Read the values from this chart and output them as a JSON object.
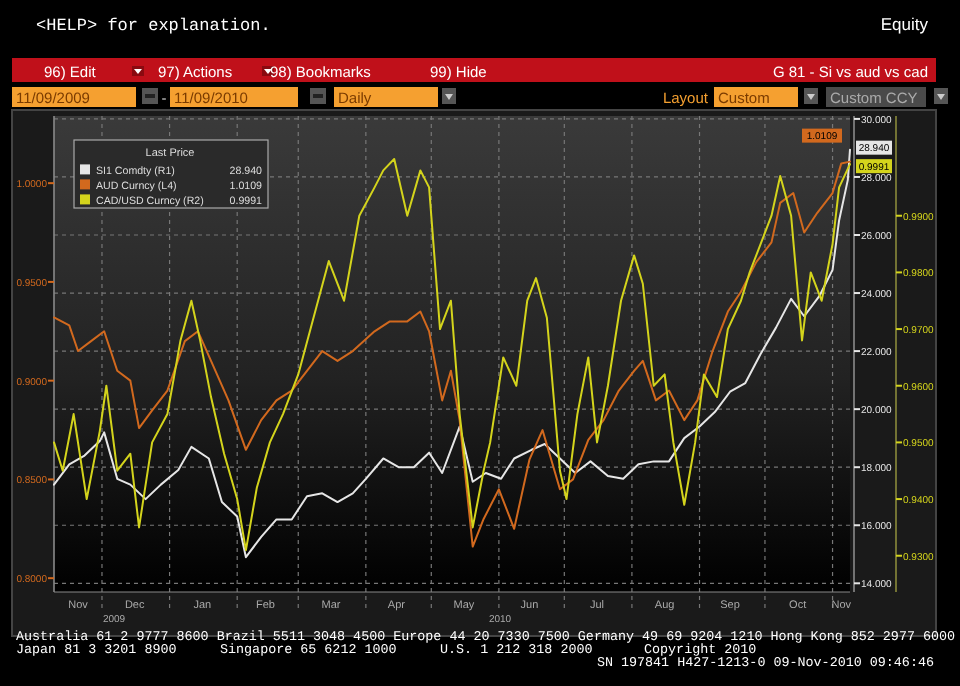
{
  "chart_data": {
    "type": "line",
    "title": "G 81 - Si vs aud vs cad",
    "legend_title": "Last Price",
    "legend": "top left",
    "grid": true,
    "xlim": [
      "2009-11-09",
      "2010-11-09"
    ],
    "xticks": [
      {
        "value": "2009-11-20",
        "label": "Nov"
      },
      {
        "value": "2009-12-01",
        "label": null
      },
      {
        "value": "2009-12-16",
        "label": "Dec"
      },
      {
        "value": "2010-01-01",
        "label": null
      },
      {
        "value": "2010-01-16",
        "label": "Jan"
      },
      {
        "value": "2010-02-01",
        "label": null
      },
      {
        "value": "2010-02-14",
        "label": "Feb"
      },
      {
        "value": "2010-03-01",
        "label": null
      },
      {
        "value": "2010-03-16",
        "label": "Mar"
      },
      {
        "value": "2010-04-01",
        "label": null
      },
      {
        "value": "2010-04-15",
        "label": "Apr"
      },
      {
        "value": "2010-05-01",
        "label": null
      },
      {
        "value": "2010-05-16",
        "label": "May"
      },
      {
        "value": "2010-06-01",
        "label": null
      },
      {
        "value": "2010-06-15",
        "label": "Jun"
      },
      {
        "value": "2010-07-01",
        "label": null
      },
      {
        "value": "2010-07-16",
        "label": "Jul"
      },
      {
        "value": "2010-08-01",
        "label": null
      },
      {
        "value": "2010-08-16",
        "label": "Aug"
      },
      {
        "value": "2010-09-01",
        "label": null
      },
      {
        "value": "2010-09-15",
        "label": "Sep"
      },
      {
        "value": "2010-10-01",
        "label": null
      },
      {
        "value": "2010-10-16",
        "label": "Oct"
      },
      {
        "value": "2010-11-01",
        "label": null
      },
      {
        "value": "2010-11-05",
        "label": "Nov"
      }
    ],
    "ylim": [
      0.793,
      1.034
    ],
    "yticks": [
      {
        "value": 0.8,
        "label": "0.8000"
      },
      {
        "value": 0.85,
        "label": "0.8500"
      },
      {
        "value": 0.9,
        "label": "0.9000"
      },
      {
        "value": 0.95,
        "label": "0.9500"
      },
      {
        "value": 1.0,
        "label": "1.0000"
      }
    ],
    "y2lim": [
      13.7,
      30.1
    ],
    "y2ticks": [
      {
        "value": 14,
        "label": "14.000"
      },
      {
        "value": 16,
        "label": "16.000"
      },
      {
        "value": 18,
        "label": "18.000"
      },
      {
        "value": 20,
        "label": "20.000"
      },
      {
        "value": 22,
        "label": "22.000"
      },
      {
        "value": 24,
        "label": "24.000"
      },
      {
        "value": 26,
        "label": "26.000"
      },
      {
        "value": 28,
        "label": "28.000"
      },
      {
        "value": 30,
        "label": "30.000"
      }
    ],
    "y3lim": [
      0.9236,
      1.0076
    ],
    "y3ticks": [
      {
        "value": 0.93,
        "label": "0.9300"
      },
      {
        "value": 0.94,
        "label": "0.9400"
      },
      {
        "value": 0.95,
        "label": "0.9500"
      },
      {
        "value": 0.96,
        "label": "0.9600"
      },
      {
        "value": 0.97,
        "label": "0.9700"
      },
      {
        "value": 0.98,
        "label": "0.9800"
      },
      {
        "value": 0.99,
        "label": "0.9900"
      }
    ],
    "series": [
      {
        "name": "SI1 Comdty (R1)",
        "color": "#e6e6e6",
        "axis": "y2",
        "x": [
          "2009-11-09",
          "2009-11-16",
          "2009-11-23",
          "2009-11-30",
          "2009-12-02",
          "2009-12-08",
          "2009-12-14",
          "2009-12-21",
          "2009-12-28",
          "2010-01-05",
          "2010-01-11",
          "2010-01-19",
          "2010-01-25",
          "2010-02-01",
          "2010-02-05",
          "2010-02-12",
          "2010-02-19",
          "2010-02-26",
          "2010-03-05",
          "2010-03-12",
          "2010-03-19",
          "2010-03-26",
          "2010-04-01",
          "2010-04-09",
          "2010-04-16",
          "2010-04-23",
          "2010-04-30",
          "2010-05-06",
          "2010-05-14",
          "2010-05-20",
          "2010-05-26",
          "2010-06-02",
          "2010-06-08",
          "2010-06-16",
          "2010-06-22",
          "2010-06-29",
          "2010-07-06",
          "2010-07-13",
          "2010-07-21",
          "2010-07-28",
          "2010-08-04",
          "2010-08-11",
          "2010-08-18",
          "2010-08-25",
          "2010-09-01",
          "2010-09-08",
          "2010-09-15",
          "2010-09-22",
          "2010-09-29",
          "2010-10-06",
          "2010-10-13",
          "2010-10-19",
          "2010-10-26",
          "2010-11-01",
          "2010-11-04",
          "2010-11-08",
          "2010-11-09"
        ],
        "values": [
          17.4,
          18.1,
          18.4,
          18.9,
          19.2,
          17.6,
          17.4,
          16.9,
          17.4,
          17.9,
          18.7,
          18.3,
          16.8,
          16.3,
          14.9,
          15.6,
          16.2,
          16.2,
          17.0,
          17.1,
          16.8,
          17.1,
          17.6,
          18.3,
          18.0,
          18.0,
          18.5,
          17.8,
          19.4,
          17.5,
          17.8,
          17.6,
          18.3,
          18.6,
          18.8,
          18.3,
          17.8,
          18.2,
          17.7,
          17.6,
          18.1,
          18.2,
          18.2,
          19.0,
          19.4,
          19.9,
          20.6,
          20.9,
          21.9,
          22.8,
          23.8,
          23.2,
          23.9,
          24.8,
          26.5,
          27.9,
          28.94
        ],
        "value_labels": [
          null,
          null,
          null,
          null,
          null,
          null,
          null,
          null,
          null,
          null,
          null,
          null,
          null,
          null,
          null,
          null,
          null,
          null,
          null,
          null,
          null,
          null,
          null,
          null,
          null,
          null,
          null,
          null,
          null,
          null,
          null,
          null,
          null,
          null,
          null,
          null,
          null,
          null,
          null,
          null,
          null,
          null,
          null,
          null,
          null,
          null,
          null,
          null,
          null,
          null,
          null,
          null,
          null,
          null,
          null,
          null,
          "28.940"
        ]
      },
      {
        "name": "AUD Curncy (L4)",
        "color": "#d2691e",
        "axis": "y",
        "x": [
          "2009-11-09",
          "2009-11-16",
          "2009-11-20",
          "2009-11-26",
          "2009-12-02",
          "2009-12-08",
          "2009-12-14",
          "2009-12-18",
          "2009-12-24",
          "2009-12-31",
          "2010-01-08",
          "2010-01-14",
          "2010-01-20",
          "2010-01-28",
          "2010-02-05",
          "2010-02-12",
          "2010-02-19",
          "2010-02-26",
          "2010-03-05",
          "2010-03-12",
          "2010-03-19",
          "2010-03-26",
          "2010-04-05",
          "2010-04-12",
          "2010-04-20",
          "2010-04-26",
          "2010-04-30",
          "2010-05-06",
          "2010-05-10",
          "2010-05-14",
          "2010-05-20",
          "2010-05-25",
          "2010-06-01",
          "2010-06-08",
          "2010-06-15",
          "2010-06-21",
          "2010-06-29",
          "2010-07-05",
          "2010-07-12",
          "2010-07-19",
          "2010-07-26",
          "2010-08-02",
          "2010-08-06",
          "2010-08-12",
          "2010-08-18",
          "2010-08-25",
          "2010-08-31",
          "2010-09-07",
          "2010-09-14",
          "2010-09-20",
          "2010-09-27",
          "2010-10-04",
          "2010-10-08",
          "2010-10-14",
          "2010-10-19",
          "2010-10-25",
          "2010-11-01",
          "2010-11-05",
          "2010-11-09"
        ],
        "values": [
          0.932,
          0.928,
          0.915,
          0.92,
          0.925,
          0.905,
          0.9,
          0.876,
          0.885,
          0.895,
          0.92,
          0.925,
          0.91,
          0.89,
          0.865,
          0.88,
          0.89,
          0.895,
          0.905,
          0.915,
          0.91,
          0.915,
          0.925,
          0.93,
          0.93,
          0.935,
          0.925,
          0.89,
          0.905,
          0.88,
          0.816,
          0.83,
          0.845,
          0.825,
          0.86,
          0.875,
          0.845,
          0.85,
          0.87,
          0.88,
          0.895,
          0.905,
          0.91,
          0.89,
          0.895,
          0.88,
          0.89,
          0.915,
          0.935,
          0.945,
          0.96,
          0.97,
          0.99,
          0.995,
          0.975,
          0.985,
          0.995,
          1.01,
          1.0109
        ],
        "value_labels": [
          null,
          null,
          null,
          null,
          null,
          null,
          null,
          null,
          null,
          null,
          null,
          null,
          null,
          null,
          null,
          null,
          null,
          null,
          null,
          null,
          null,
          null,
          null,
          null,
          null,
          null,
          null,
          null,
          null,
          null,
          null,
          null,
          null,
          null,
          null,
          null,
          null,
          null,
          null,
          null,
          null,
          null,
          null,
          null,
          null,
          null,
          null,
          null,
          null,
          null,
          null,
          null,
          null,
          null,
          null,
          null,
          null,
          null,
          "1.0109"
        ]
      },
      {
        "name": "CAD/USD Curncy (R2)",
        "color": "#d4d41c",
        "axis": "y3",
        "x": [
          "2009-11-09",
          "2009-11-13",
          "2009-11-18",
          "2009-11-24",
          "2009-11-30",
          "2009-12-03",
          "2009-12-08",
          "2009-12-14",
          "2009-12-18",
          "2009-12-24",
          "2009-12-31",
          "2010-01-06",
          "2010-01-11",
          "2010-01-15",
          "2010-01-20",
          "2010-01-26",
          "2010-02-01",
          "2010-02-05",
          "2010-02-10",
          "2010-02-16",
          "2010-02-22",
          "2010-03-01",
          "2010-03-08",
          "2010-03-15",
          "2010-03-22",
          "2010-03-29",
          "2010-04-05",
          "2010-04-09",
          "2010-04-14",
          "2010-04-20",
          "2010-04-26",
          "2010-04-30",
          "2010-05-05",
          "2010-05-10",
          "2010-05-14",
          "2010-05-20",
          "2010-05-25",
          "2010-05-28",
          "2010-06-03",
          "2010-06-09",
          "2010-06-14",
          "2010-06-18",
          "2010-06-23",
          "2010-06-29",
          "2010-07-02",
          "2010-07-07",
          "2010-07-12",
          "2010-07-16",
          "2010-07-21",
          "2010-07-27",
          "2010-08-02",
          "2010-08-06",
          "2010-08-11",
          "2010-08-16",
          "2010-08-20",
          "2010-08-25",
          "2010-08-30",
          "2010-09-03",
          "2010-09-09",
          "2010-09-14",
          "2010-09-20",
          "2010-09-24",
          "2010-09-29",
          "2010-10-04",
          "2010-10-08",
          "2010-10-13",
          "2010-10-18",
          "2010-10-22",
          "2010-10-27",
          "2010-11-01",
          "2010-11-04",
          "2010-11-09"
        ],
        "values": [
          0.95,
          0.945,
          0.955,
          0.94,
          0.952,
          0.96,
          0.945,
          0.948,
          0.935,
          0.95,
          0.955,
          0.968,
          0.975,
          0.968,
          0.958,
          0.948,
          0.94,
          0.931,
          0.942,
          0.95,
          0.955,
          0.962,
          0.972,
          0.982,
          0.975,
          0.99,
          0.995,
          0.998,
          1.0,
          0.99,
          0.998,
          0.995,
          0.97,
          0.975,
          0.955,
          0.935,
          0.945,
          0.95,
          0.965,
          0.96,
          0.975,
          0.979,
          0.972,
          0.945,
          0.94,
          0.955,
          0.965,
          0.95,
          0.96,
          0.975,
          0.983,
          0.978,
          0.96,
          0.962,
          0.95,
          0.939,
          0.95,
          0.962,
          0.958,
          0.97,
          0.975,
          0.98,
          0.985,
          0.99,
          0.997,
          0.99,
          0.968,
          0.98,
          0.975,
          0.985,
          0.995,
          0.9991
        ],
        "value_labels": [
          null,
          null,
          null,
          null,
          null,
          null,
          null,
          null,
          null,
          null,
          null,
          null,
          null,
          null,
          null,
          null,
          null,
          null,
          null,
          null,
          null,
          null,
          null,
          null,
          null,
          null,
          null,
          null,
          null,
          null,
          null,
          null,
          null,
          null,
          null,
          null,
          null,
          null,
          null,
          null,
          null,
          null,
          null,
          null,
          null,
          null,
          null,
          null,
          null,
          null,
          null,
          null,
          null,
          null,
          null,
          null,
          null,
          null,
          null,
          null,
          null,
          null,
          null,
          null,
          null,
          null,
          null,
          null,
          null,
          null,
          null,
          "0.9991"
        ]
      }
    ],
    "annotations": [
      "<HELP> for explanation.",
      "Equity",
      "96) Edit",
      "97) Actions",
      "98) Bookmarks",
      "99) Hide",
      "11/09/2009",
      "-",
      "11/09/2010",
      "Daily",
      "Layout",
      "Custom",
      "Custom CCY",
      "2009",
      "2010",
      "Australia 61 2 9777 8600 Brazil 5511 3048 4500 Europe 44 20 7330 7500 Germany 49 69 9204 1210 Hong Kong 852 2977 6000",
      "Japan 81 3 3201 8900",
      "Singapore 65 6212 1000",
      "U.S. 1 212 318 2000",
      "Copyright 2010",
      "SN 197841 H427-1213-0 09-Nov-2010 09:46:46"
    ]
  }
}
